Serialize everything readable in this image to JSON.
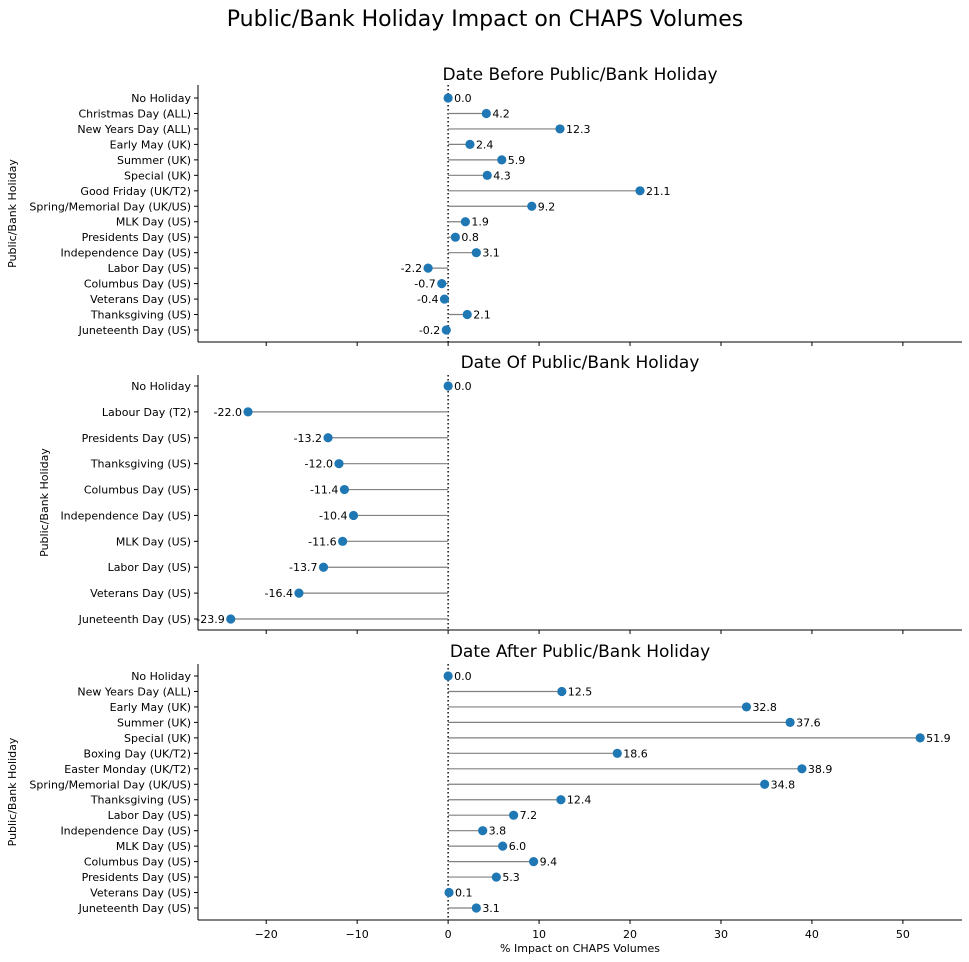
{
  "figure": {
    "title": "Public/Bank Holiday Impact on CHAPS Volumes",
    "xlabel": "% Impact on CHAPS Volumes",
    "xticks": [
      -20,
      -10,
      0,
      10,
      20,
      30,
      40,
      50
    ],
    "xlim": [
      -27.5,
      56.5
    ]
  },
  "colors": {
    "marker": "#1f77b4",
    "stem": "#808080",
    "zero_line": "#000000"
  },
  "chart_data": [
    {
      "type": "lollipop",
      "title": "Date Before Public/Bank Holiday",
      "ylabel": "Public/Bank Holiday",
      "xlabel": "",
      "categories": [
        "No Holiday",
        "Christmas Day (ALL)",
        "New Years Day (ALL)",
        "Early May (UK)",
        "Summer (UK)",
        "Special (UK)",
        "Good Friday (UK/T2)",
        "Spring/Memorial Day (UK/US)",
        "MLK Day (US)",
        "Presidents Day (US)",
        "Independence Day (US)",
        "Labor Day (US)",
        "Columbus Day (US)",
        "Veterans Day (US)",
        "Thanksgiving (US)",
        "Juneteenth Day (US)"
      ],
      "values": [
        0.0,
        4.2,
        12.3,
        2.4,
        5.9,
        4.3,
        21.1,
        9.2,
        1.9,
        0.8,
        3.1,
        -2.2,
        -0.7,
        -0.4,
        2.1,
        -0.2
      ],
      "labels": [
        "0.0",
        "4.2",
        "12.3",
        "2.4",
        "5.9",
        "4.3",
        "21.1",
        "9.2",
        "1.9",
        "0.8",
        "3.1",
        "-2.2",
        "-0.7",
        "-0.4",
        "2.1",
        "-0.2"
      ]
    },
    {
      "type": "lollipop",
      "title": "Date Of Public/Bank Holiday",
      "ylabel": "Public/Bank Holiday",
      "xlabel": "",
      "categories": [
        "No Holiday",
        "Labour Day (T2)",
        "Presidents Day (US)",
        "Thanksgiving (US)",
        "Columbus Day (US)",
        "Independence Day (US)",
        "MLK Day (US)",
        "Labor Day (US)",
        "Veterans Day (US)",
        "Juneteenth Day (US)"
      ],
      "values": [
        0.0,
        -22.0,
        -13.2,
        -12.0,
        -11.4,
        -10.4,
        -11.6,
        -13.7,
        -16.4,
        -23.9
      ],
      "labels": [
        "0.0",
        "-22.0",
        "-13.2",
        "-12.0",
        "-11.4",
        "-10.4",
        "-11.6",
        "-13.7",
        "-16.4",
        "-23.9"
      ]
    },
    {
      "type": "lollipop",
      "title": "Date After Public/Bank Holiday",
      "ylabel": "Public/Bank Holiday",
      "xlabel": "% Impact on CHAPS Volumes",
      "categories": [
        "No Holiday",
        "New Years Day (ALL)",
        "Early May (UK)",
        "Summer (UK)",
        "Special (UK)",
        "Boxing Day (UK/T2)",
        "Easter Monday (UK/T2)",
        "Spring/Memorial Day (UK/US)",
        "Thanksgiving (US)",
        "Labor Day (US)",
        "Independence Day (US)",
        "MLK Day (US)",
        "Columbus Day (US)",
        "Presidents Day (US)",
        "Veterans Day (US)",
        "Juneteenth Day (US)"
      ],
      "values": [
        0.0,
        12.5,
        32.8,
        37.6,
        51.9,
        18.6,
        38.9,
        34.8,
        12.4,
        7.2,
        3.8,
        6.0,
        9.4,
        5.3,
        0.1,
        3.1
      ],
      "labels": [
        "0.0",
        "12.5",
        "32.8",
        "37.6",
        "51.9",
        "18.6",
        "38.9",
        "34.8",
        "12.4",
        "7.2",
        "3.8",
        "6.0",
        "9.4",
        "5.3",
        "0.1",
        "3.1"
      ]
    }
  ]
}
